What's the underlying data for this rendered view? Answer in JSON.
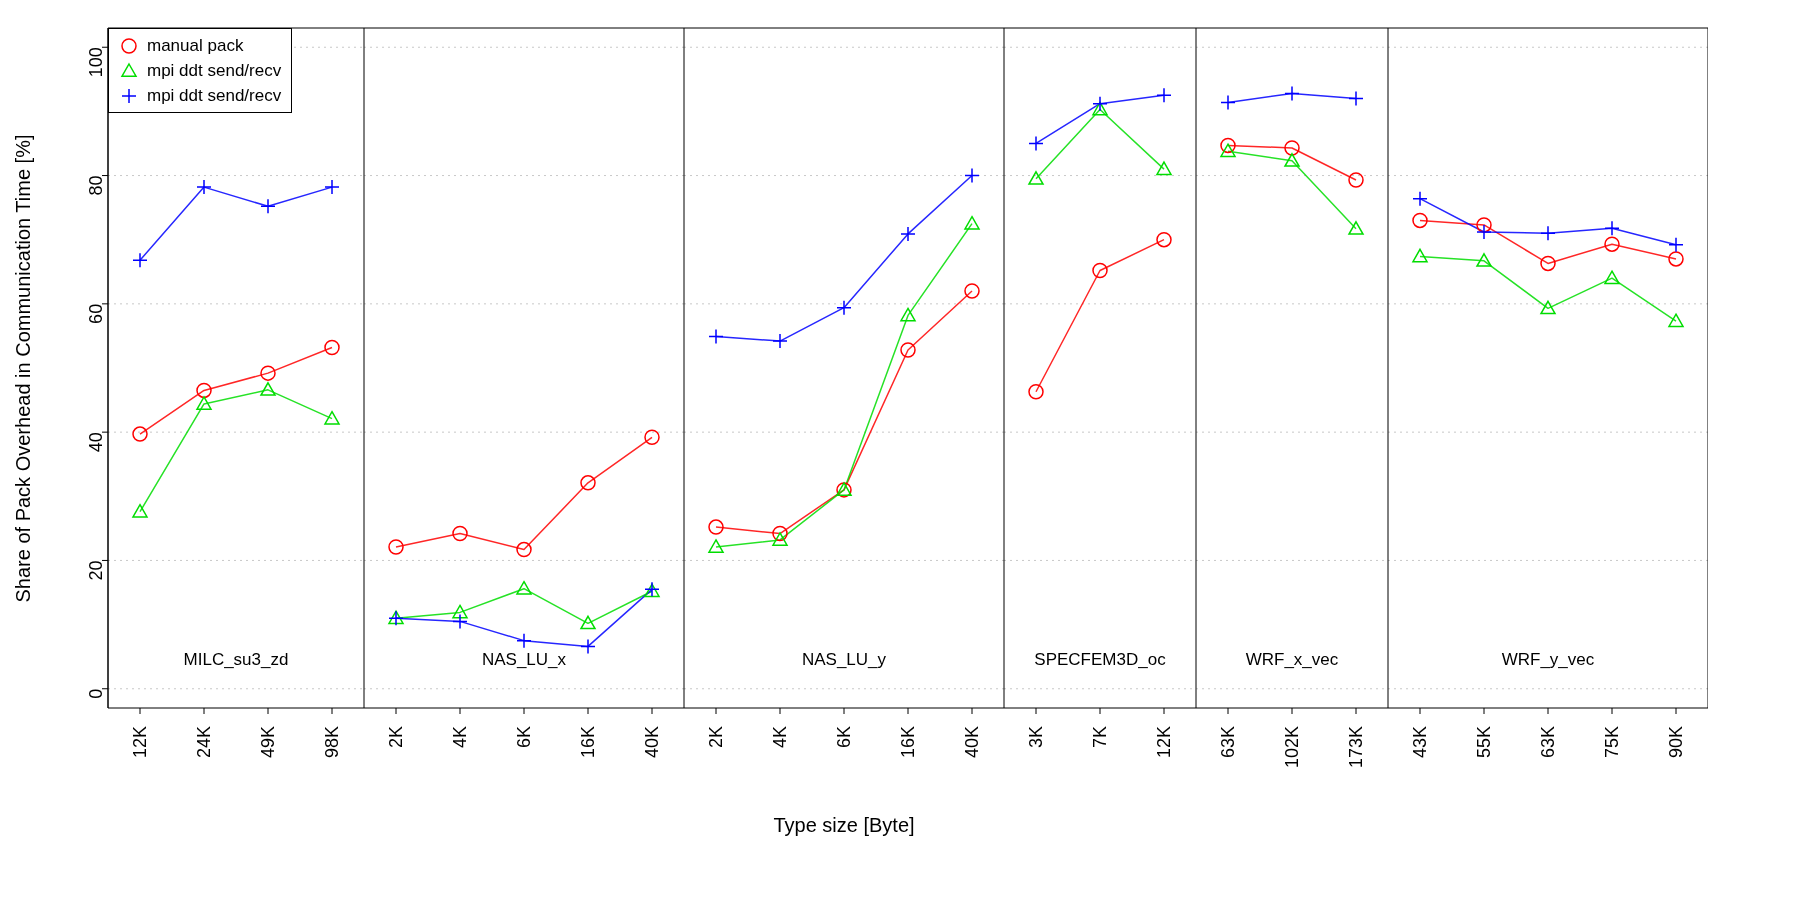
{
  "chart_data": [
    {
      "type": "line",
      "title": "MILC_su3_zd",
      "ylabel": "Share of Pack Overhead in Communication Time [%]",
      "categories": [
        "12K",
        "24K",
        "49K",
        "98K"
      ],
      "series": [
        {
          "name": "manual pack",
          "color": "#ff0000",
          "marker": "circle",
          "values": [
            39.7,
            46.5,
            49.2,
            53.2
          ]
        },
        {
          "name": "mpi ddt send/recv",
          "color": "#00dd00",
          "marker": "triangle",
          "values": [
            27.6,
            44.4,
            46.6,
            42.1
          ]
        },
        {
          "name": "mpi ddt send/recv",
          "color": "#0000ff",
          "marker": "cross",
          "values": [
            66.8,
            78.2,
            75.2,
            78.2
          ]
        }
      ],
      "ylim": [
        -3,
        103
      ],
      "yticks": [
        0,
        20,
        40,
        60,
        80,
        100
      ],
      "grid": "y",
      "legend": "top left"
    },
    {
      "type": "line",
      "title": "NAS_LU_x",
      "categories": [
        "2K",
        "4K",
        "6K",
        "16K",
        "40K"
      ],
      "series": [
        {
          "color": "#ff0000",
          "marker": "circle",
          "values": [
            22.1,
            24.2,
            21.7,
            32.1,
            39.2
          ]
        },
        {
          "color": "#00dd00",
          "marker": "triangle",
          "values": [
            11,
            11.9,
            15.6,
            10.2,
            15.2
          ]
        },
        {
          "color": "#0000ff",
          "marker": "cross",
          "values": [
            11,
            10.5,
            7.5,
            6.6,
            15.5
          ]
        }
      ],
      "ylim": [
        -3,
        103
      ],
      "yticks": [
        0,
        20,
        40,
        60,
        80,
        100
      ],
      "grid": "y",
      "tick_labels": "x"
    },
    {
      "type": "line",
      "title": "NAS_LU_y",
      "xlabel": "Type size [Byte]",
      "categories": [
        "2K",
        "4K",
        "6K",
        "16K",
        "40K"
      ],
      "series": [
        {
          "color": "#ff0000",
          "marker": "circle",
          "values": [
            25.2,
            24.2,
            31,
            52.8,
            62
          ]
        },
        {
          "color": "#00dd00",
          "marker": "triangle",
          "values": [
            22.1,
            23.2,
            31,
            58.2,
            72.5
          ]
        },
        {
          "color": "#0000ff",
          "marker": "cross",
          "values": [
            54.9,
            54.2,
            59.4,
            70.9,
            80
          ]
        }
      ],
      "ylim": [
        -3,
        103
      ],
      "yticks": [
        0,
        20,
        40,
        60,
        80,
        100
      ],
      "grid": "y",
      "tick_labels": "x"
    },
    {
      "type": "line",
      "title": "SPECFEM3D_oc",
      "categories": [
        "3K",
        "7K",
        "12K"
      ],
      "series": [
        {
          "color": "#ff0000",
          "marker": "circle",
          "values": [
            46.3,
            65.2,
            70
          ]
        },
        {
          "color": "#00dd00",
          "marker": "triangle",
          "values": [
            79.5,
            90.3,
            81
          ]
        },
        {
          "color": "#0000ff",
          "marker": "cross",
          "values": [
            85,
            91.2,
            92.5
          ]
        }
      ],
      "ylim": [
        -3,
        103
      ],
      "yticks": [
        0,
        20,
        40,
        60,
        80,
        100
      ],
      "grid": "y",
      "tick_labels": "x"
    },
    {
      "type": "line",
      "title": "WRF_x_vec",
      "categories": [
        "63K",
        "102K",
        "173K"
      ],
      "series": [
        {
          "color": "#ff0000",
          "marker": "circle",
          "values": [
            84.7,
            84.3,
            79.3
          ]
        },
        {
          "color": "#00dd00",
          "marker": "triangle",
          "values": [
            83.8,
            82.3,
            71.7
          ]
        },
        {
          "color": "#0000ff",
          "marker": "cross",
          "values": [
            91.4,
            92.8,
            92
          ]
        }
      ],
      "ylim": [
        -3,
        103
      ],
      "yticks": [
        0,
        20,
        40,
        60,
        80,
        100
      ],
      "grid": "y",
      "tick_labels": "x"
    },
    {
      "type": "line",
      "title": "WRF_y_vec",
      "categories": [
        "43K",
        "55K",
        "63K",
        "75K",
        "90K"
      ],
      "series": [
        {
          "color": "#ff0000",
          "marker": "circle",
          "values": [
            73,
            72.3,
            66.3,
            69.3,
            67
          ]
        },
        {
          "color": "#00dd00",
          "marker": "triangle",
          "values": [
            67.4,
            66.7,
            59.3,
            64,
            57.3
          ]
        },
        {
          "color": "#0000ff",
          "marker": "cross",
          "values": [
            76.4,
            71.2,
            71,
            71.8,
            69.2
          ]
        }
      ],
      "ylim": [
        -3,
        103
      ],
      "yticks": [
        0,
        20,
        40,
        60,
        80,
        100
      ],
      "grid": "y",
      "tick_labels": "x"
    }
  ]
}
